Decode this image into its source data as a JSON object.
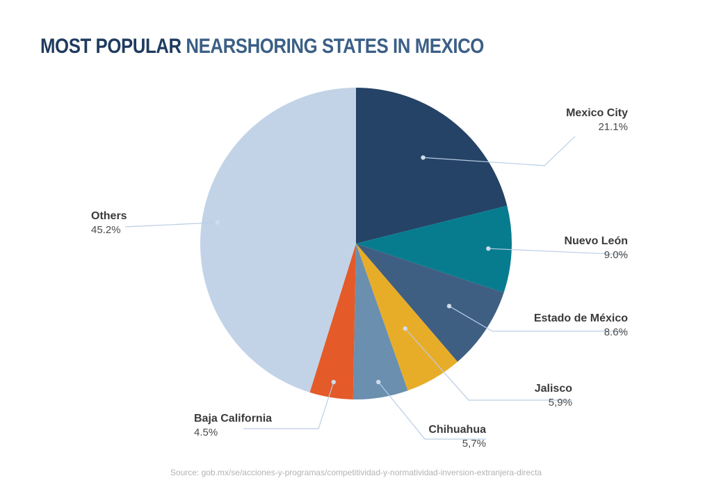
{
  "header": {
    "title_strong": "MOST POPULAR",
    "title_rest": "NEARSHORING STATES IN MEXICO"
  },
  "source": "Source: gob.mx/se/acciones-y-programas/competitividad-y-normatividad-inversion-extranjera-directa",
  "chart_data": {
    "type": "pie",
    "title": "MOST POPULAR NEARSHORING STATES IN MEXICO",
    "legend": "none",
    "slices": [
      {
        "label": "Mexico City",
        "value": 21.1,
        "display": "21.1%",
        "color": "#244366"
      },
      {
        "label": "Nuevo León",
        "value": 9.0,
        "display": "9.0%",
        "color": "#077c8f"
      },
      {
        "label": "Estado de México",
        "value": 8.6,
        "display": "8.6%",
        "color": "#3f5f82"
      },
      {
        "label": "Jalisco",
        "value": 5.9,
        "display": "5,9%",
        "color": "#e8ad28"
      },
      {
        "label": "Chihuahua",
        "value": 5.7,
        "display": "5,7%",
        "color": "#6a8faf"
      },
      {
        "label": "Baja California",
        "value": 4.5,
        "display": "4.5%",
        "color": "#e45a29"
      },
      {
        "label": "Others",
        "value": 45.2,
        "display": "45.2%",
        "color": "#c2d3e7"
      }
    ]
  }
}
